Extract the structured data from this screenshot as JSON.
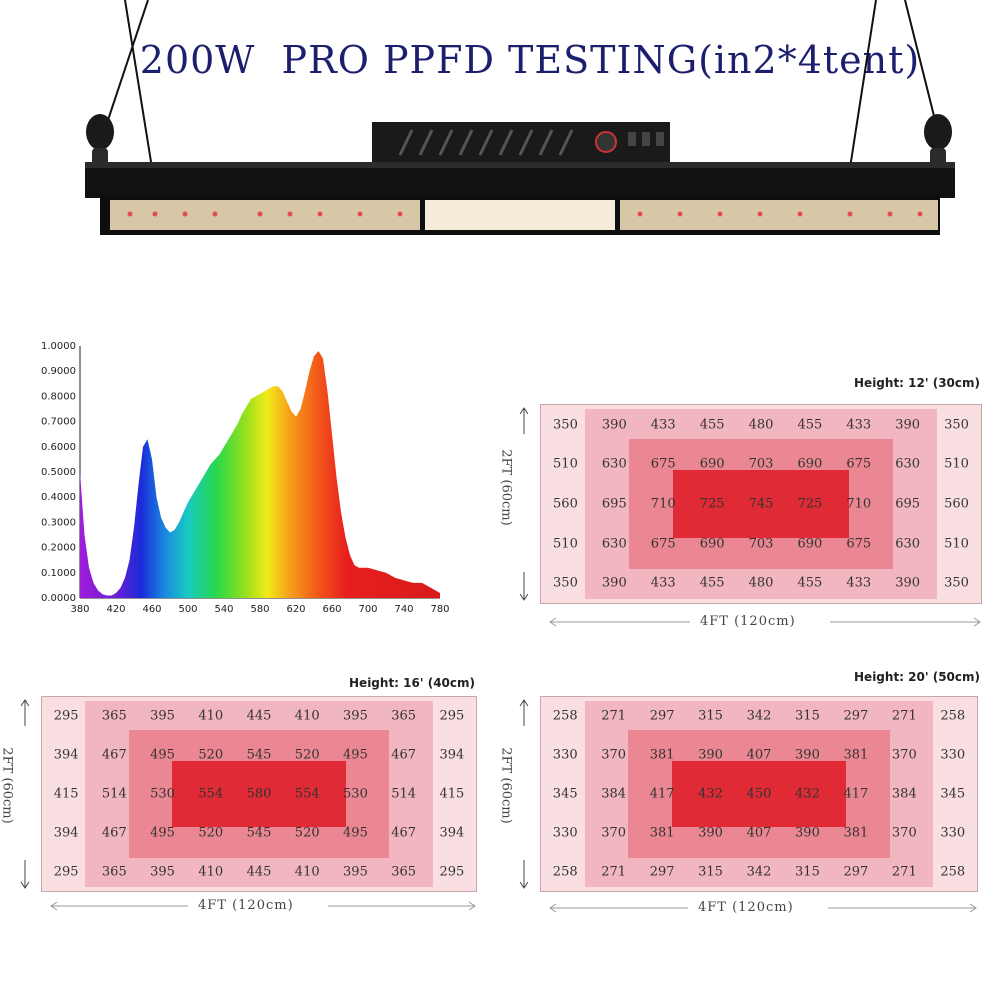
{
  "title": "200W  PRO PPFD TESTING(in2*4tent)",
  "chart_data": {
    "type": "area",
    "x_ticks": [
      380,
      420,
      460,
      500,
      540,
      580,
      620,
      660,
      700,
      740,
      780
    ],
    "y_ticks": [
      "0.0000",
      "0.1000",
      "0.2000",
      "0.3000",
      "0.4000",
      "0.5000",
      "0.6000",
      "0.7000",
      "0.8000",
      "0.9000",
      "1.0000"
    ],
    "xlim": [
      380,
      780
    ],
    "ylim": [
      0,
      1
    ],
    "x": [
      380,
      385,
      390,
      395,
      400,
      405,
      410,
      415,
      420,
      425,
      430,
      435,
      440,
      445,
      450,
      455,
      460,
      465,
      470,
      475,
      480,
      485,
      490,
      495,
      500,
      505,
      510,
      515,
      520,
      525,
      530,
      535,
      540,
      545,
      550,
      555,
      560,
      565,
      570,
      575,
      580,
      585,
      590,
      595,
      600,
      605,
      610,
      615,
      620,
      625,
      630,
      635,
      640,
      645,
      650,
      655,
      660,
      665,
      670,
      675,
      680,
      685,
      690,
      695,
      700,
      710,
      720,
      730,
      740,
      750,
      760,
      770,
      780
    ],
    "y": [
      0.5,
      0.25,
      0.12,
      0.06,
      0.03,
      0.015,
      0.01,
      0.01,
      0.02,
      0.04,
      0.08,
      0.15,
      0.28,
      0.45,
      0.6,
      0.63,
      0.55,
      0.4,
      0.32,
      0.28,
      0.26,
      0.27,
      0.3,
      0.34,
      0.38,
      0.41,
      0.44,
      0.47,
      0.5,
      0.53,
      0.55,
      0.57,
      0.6,
      0.63,
      0.66,
      0.69,
      0.73,
      0.76,
      0.79,
      0.8,
      0.81,
      0.82,
      0.83,
      0.84,
      0.84,
      0.82,
      0.78,
      0.74,
      0.72,
      0.75,
      0.82,
      0.9,
      0.96,
      0.98,
      0.95,
      0.82,
      0.65,
      0.48,
      0.34,
      0.24,
      0.17,
      0.13,
      0.12,
      0.12,
      0.12,
      0.11,
      0.1,
      0.08,
      0.07,
      0.06,
      0.06,
      0.04,
      0.02
    ]
  },
  "grids": [
    {
      "title": "Height: 12' (30cm)",
      "vertical_label": "2FT (60cm)",
      "horizontal_label": "4FT (120cm)",
      "rows": [
        [
          "350",
          "390",
          "433",
          "455",
          "480",
          "455",
          "433",
          "390",
          "350"
        ],
        [
          "510",
          "630",
          "675",
          "690",
          "703",
          "690",
          "675",
          "630",
          "510"
        ],
        [
          "560",
          "695",
          "710",
          "725",
          "745",
          "725",
          "710",
          "695",
          "560"
        ],
        [
          "510",
          "630",
          "675",
          "690",
          "703",
          "690",
          "675",
          "630",
          "510"
        ],
        [
          "350",
          "390",
          "433",
          "455",
          "480",
          "455",
          "433",
          "390",
          "350"
        ]
      ]
    },
    {
      "title": "Height: 16' (40cm)",
      "vertical_label": "2FT (60cm)",
      "horizontal_label": "4FT (120cm)",
      "rows": [
        [
          "295",
          "365",
          "395",
          "410",
          "445",
          "410",
          "395",
          "365",
          "295"
        ],
        [
          "394",
          "467",
          "495",
          "520",
          "545",
          "520",
          "495",
          "467",
          "394"
        ],
        [
          "415",
          "514",
          "530",
          "554",
          "580",
          "554",
          "530",
          "514",
          "415"
        ],
        [
          "394",
          "467",
          "495",
          "520",
          "545",
          "520",
          "495",
          "467",
          "394"
        ],
        [
          "295",
          "365",
          "395",
          "410",
          "445",
          "410",
          "395",
          "365",
          "295"
        ]
      ]
    },
    {
      "title": "Height: 20' (50cm)",
      "vertical_label": "2FT (60cm)",
      "horizontal_label": "4FT (120cm)",
      "rows": [
        [
          "258",
          "271",
          "297",
          "315",
          "342",
          "315",
          "297",
          "271",
          "258"
        ],
        [
          "330",
          "370",
          "381",
          "390",
          "407",
          "390",
          "381",
          "370",
          "330"
        ],
        [
          "345",
          "384",
          "417",
          "432",
          "450",
          "432",
          "417",
          "384",
          "345"
        ],
        [
          "330",
          "370",
          "381",
          "390",
          "407",
          "390",
          "381",
          "370",
          "330"
        ],
        [
          "258",
          "271",
          "297",
          "315",
          "342",
          "315",
          "297",
          "271",
          "258"
        ]
      ]
    }
  ]
}
